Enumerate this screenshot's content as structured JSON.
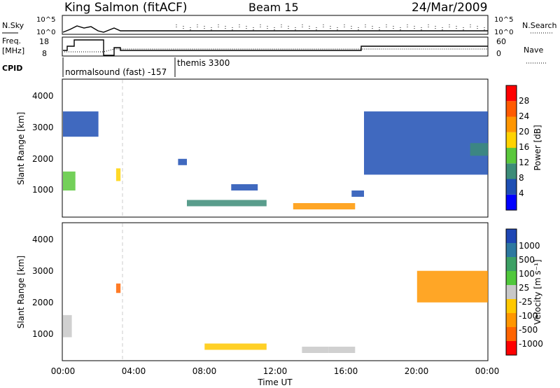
{
  "header": {
    "station": "King Salmon (fitACF)",
    "beam": "Beam 15",
    "date": "24/Mar/2009"
  },
  "noise_panel": {
    "left_label": "N.Sky",
    "right_label": "N.Search",
    "left_ticks": [
      "10^5",
      "10^0"
    ],
    "right_ticks": [
      "10^5",
      "10^0"
    ]
  },
  "freq_panel": {
    "left_label_1": "Freq.",
    "left_label_2": "[MHz]",
    "right_label": "Nave",
    "left_ticks": [
      "18",
      "8"
    ],
    "right_ticks": [
      "60",
      "0"
    ]
  },
  "cpid_panel": {
    "label": "CPID",
    "modes": [
      "normalsound (fast) -157",
      "themis 3300"
    ]
  },
  "axes": {
    "ylabel": "Slant Range [km]",
    "xlabel": "Time UT",
    "x_ticks": [
      "00:00",
      "04:00",
      "08:00",
      "12:00",
      "16:00",
      "20:00",
      "00:00"
    ],
    "y_ticks": [
      "1000",
      "2000",
      "3000",
      "4000"
    ]
  },
  "colorbars": {
    "power": {
      "label": "Power [dB]",
      "ticks": [
        "4",
        "8",
        "12",
        "16",
        "20",
        "24",
        "28"
      ],
      "colors": [
        "#0000ff",
        "#1e4fb4",
        "#3c8c78",
        "#5ac83c",
        "#ffd200",
        "#ff9600",
        "#ff5a00",
        "#ff0000"
      ]
    },
    "velocity": {
      "label": "Velocity [m s⁻¹]",
      "ticks": [
        "1000",
        "500",
        "100",
        "25",
        "-25",
        "-100",
        "-500",
        "-1000"
      ],
      "colors": [
        "#1e46b4",
        "#2d78a0",
        "#3ca064",
        "#50c83c",
        "#c8c8c8",
        "#ffc800",
        "#ff9600",
        "#ff6400",
        "#ff0000"
      ]
    }
  },
  "chart_data": [
    {
      "type": "heatmap",
      "title": "",
      "xlabel": "",
      "ylabel": "Slant Range [km]",
      "colorbar_label": "Power [dB]",
      "xlim": [
        0,
        24
      ],
      "ylim": [
        180,
        4500
      ],
      "zlim": [
        0,
        30
      ],
      "regions": [
        {
          "t": [
            0.0,
            0.7
          ],
          "r": [
            1000,
            1600
          ],
          "v": 12
        },
        {
          "t": [
            0.0,
            2.0
          ],
          "r": [
            2700,
            3500
          ],
          "v": 6
        },
        {
          "t": [
            3.0,
            3.25
          ],
          "r": [
            1300,
            1700
          ],
          "v": 18
        },
        {
          "t": [
            6.5,
            7.0
          ],
          "r": [
            1800,
            2000
          ],
          "v": 5
        },
        {
          "t": [
            7.0,
            11.5
          ],
          "r": [
            500,
            700
          ],
          "v": 8
        },
        {
          "t": [
            9.5,
            11.0
          ],
          "r": [
            1000,
            1200
          ],
          "v": 6
        },
        {
          "t": [
            13.0,
            16.5
          ],
          "r": [
            400,
            600
          ],
          "v": 20
        },
        {
          "t": [
            16.3,
            17.0
          ],
          "r": [
            800,
            1000
          ],
          "v": 6
        },
        {
          "t": [
            17.0,
            24.0
          ],
          "r": [
            1500,
            3500
          ],
          "v": 6
        },
        {
          "t": [
            23.0,
            24.0
          ],
          "r": [
            2100,
            2500
          ],
          "v": 8
        }
      ]
    },
    {
      "type": "heatmap",
      "title": "",
      "xlabel": "Time UT",
      "ylabel": "Slant Range [km]",
      "colorbar_label": "Velocity [m s⁻¹]",
      "xlim": [
        0,
        24
      ],
      "ylim": [
        180,
        4500
      ],
      "zlim": [
        -1000,
        1000
      ],
      "regions": [
        {
          "t": [
            0.0,
            0.5
          ],
          "r": [
            900,
            1600
          ],
          "v": 0
        },
        {
          "t": [
            3.0,
            3.25
          ],
          "r": [
            2300,
            2600
          ],
          "v": -600
        },
        {
          "t": [
            8.0,
            11.5
          ],
          "r": [
            500,
            700
          ],
          "v": -300
        },
        {
          "t": [
            13.5,
            15.0
          ],
          "r": [
            400,
            600
          ],
          "v": 80
        },
        {
          "t": [
            15.0,
            16.5
          ],
          "r": [
            400,
            600
          ],
          "v": 0
        },
        {
          "t": [
            20.0,
            24.0
          ],
          "r": [
            2000,
            3000
          ],
          "v": -400
        }
      ]
    }
  ]
}
